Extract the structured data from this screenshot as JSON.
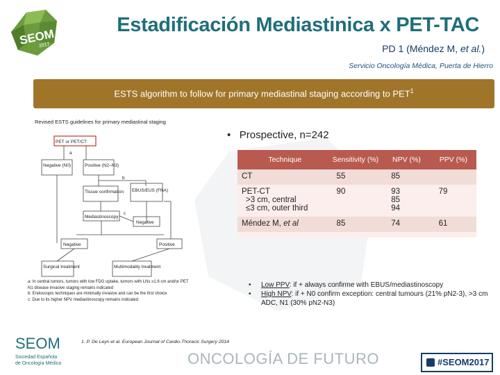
{
  "header": {
    "title": "Estadificación Mediastinica x PET-TAC",
    "subtitle_main": "PD 1  (Méndez M, ",
    "subtitle_italic": "et al.",
    "subtitle_end": ")",
    "affiliation": "Servicio Oncología Médica, Puerta de Hierro"
  },
  "banner": {
    "text": "ESTS algorithm to follow for primary mediastinal staging according to PET",
    "superscript": "1"
  },
  "figure": {
    "caption": "Revised ESTS guidelines for primary mediastinal staging",
    "boxes": {
      "pet": "PET or PET/CT",
      "negative_n0": "Negative (N0)",
      "positive_n2n3": "Positive (N2–N3)",
      "tissue": "Tissue confirmation",
      "ebus": "EBUS/EUS (FNA)",
      "mediastinoscopy": "Mediastinoscopy",
      "negative_mid": "Negative",
      "negative_low": "Negative",
      "positive_low": "Positive",
      "surgical": "Surgical treatment",
      "multimodality": "Multimodality treatment"
    },
    "labels": {
      "a": "a",
      "b": "b",
      "c": "c"
    },
    "notes": [
      "a: In central tumors, tumors with low FDG uptake, tumors with LNs ≥1.6 cm and/or PET N1 disease invasive staging remains indicated",
      "b: Endoscopic techniques are minimally invasive and can be the first choice",
      "c: Due to its higher NPV mediastinoscopy remains indicated"
    ]
  },
  "prospective": {
    "text": "Prospective, n=242"
  },
  "table": {
    "headers": [
      "Technique",
      "Sensitivity (%)",
      "NPV (%)",
      "PPV (%)"
    ],
    "rows": [
      {
        "technique": "CT",
        "sens": "55",
        "npv": "85",
        "ppv": ""
      },
      {
        "technique": "PET-CT",
        "sub1": ">3 cm, central",
        "sub2": "≤3 cm, outer third",
        "sens": "90",
        "npv": "93",
        "npv2": "85",
        "npv3": "94",
        "ppv": "79"
      },
      {
        "technique_main": "Méndez M, ",
        "technique_italic": "et al",
        "sens": "85",
        "npv": "74",
        "ppv": "61"
      }
    ]
  },
  "conclusions": {
    "b1_ul": "Low PPV",
    "b1_rest": ": if + always  confirme with EBUS/mediastinoscopy",
    "b2_ul": "High NPV",
    "b2_rest": ": if + N0 confirm exception: central tumours  (21% pN2-3), >3 cm ADC, N1 (30% pN2-N3)"
  },
  "footer": {
    "reference": "1. P. De Leyn et al. European Journal of Cardio-Thoracic Surgery 2014",
    "tagline": "ONCOLOGÍA DE FUTURO",
    "hashtag": "#SEOM2017",
    "logo_text": "SEOM",
    "logo_sub1": "Sociedad Española",
    "logo_sub2": "de Oncología Médica",
    "top_logo_text": "SEOM",
    "top_logo_year": "2017"
  },
  "colors": {
    "title": "#1f6f7a",
    "banner": "#a0752a",
    "table_header": "#b85a4f",
    "row_dark": "#f2dcd8",
    "row_light": "#fbeeec",
    "hashtag": "#123d6b"
  }
}
